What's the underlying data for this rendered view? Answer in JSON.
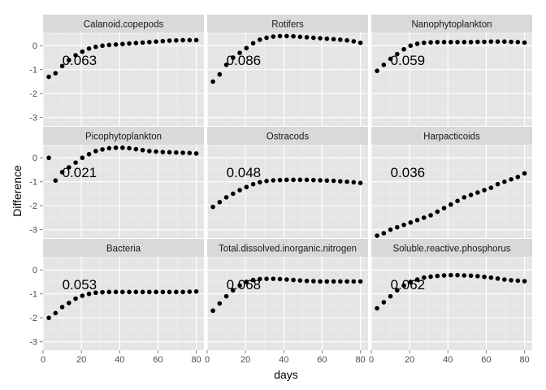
{
  "chart_data": {
    "type": "scatter",
    "xlabel": "days",
    "ylabel": "Difference",
    "xlim": [
      0,
      84
    ],
    "ylim": [
      -3.35,
      0.55
    ],
    "xticks": [
      0,
      20,
      40,
      60,
      80
    ],
    "yticks": [
      0,
      -1,
      -2,
      -3
    ],
    "grid": true,
    "x": [
      3,
      6.5,
      10,
      13.5,
      17,
      20.5,
      24,
      27.5,
      31,
      34.5,
      38,
      41.5,
      45,
      48.5,
      52,
      55.5,
      59,
      62.5,
      66,
      69.5,
      73,
      76.5,
      80
    ],
    "panels": [
      {
        "name": "Calanoid.copepods",
        "annotation": "0.063",
        "y": [
          -1.3,
          -1.15,
          -0.85,
          -0.6,
          -0.4,
          -0.25,
          -0.12,
          -0.05,
          0.0,
          0.03,
          0.05,
          0.07,
          0.09,
          0.11,
          0.13,
          0.15,
          0.17,
          0.19,
          0.21,
          0.22,
          0.23,
          0.23,
          0.23
        ]
      },
      {
        "name": "Rotifers",
        "annotation": "0.086",
        "y": [
          -1.5,
          -1.2,
          -0.8,
          -0.5,
          -0.3,
          -0.1,
          0.1,
          0.25,
          0.33,
          0.38,
          0.4,
          0.4,
          0.39,
          0.37,
          0.35,
          0.33,
          0.31,
          0.29,
          0.27,
          0.25,
          0.22,
          0.18,
          0.12
        ]
      },
      {
        "name": "Nanophytoplankton",
        "annotation": "0.059",
        "y": [
          -1.05,
          -0.8,
          -0.55,
          -0.35,
          -0.15,
          0.0,
          0.08,
          0.12,
          0.14,
          0.15,
          0.15,
          0.15,
          0.15,
          0.15,
          0.15,
          0.16,
          0.16,
          0.17,
          0.17,
          0.17,
          0.16,
          0.15,
          0.13
        ]
      },
      {
        "name": "Picophytoplankton",
        "annotation": "0.021",
        "y": [
          0.0,
          -0.95,
          -0.6,
          -0.4,
          -0.2,
          0.0,
          0.15,
          0.28,
          0.35,
          0.4,
          0.42,
          0.42,
          0.4,
          0.36,
          0.32,
          0.28,
          0.26,
          0.24,
          0.23,
          0.22,
          0.21,
          0.2,
          0.18
        ]
      },
      {
        "name": "Ostracods",
        "annotation": "0.048",
        "y": [
          -2.05,
          -1.85,
          -1.65,
          -1.5,
          -1.35,
          -1.22,
          -1.1,
          -1.02,
          -0.97,
          -0.94,
          -0.93,
          -0.92,
          -0.92,
          -0.92,
          -0.92,
          -0.93,
          -0.94,
          -0.95,
          -0.96,
          -0.98,
          -1.0,
          -1.02,
          -1.05
        ]
      },
      {
        "name": "Harpacticoids",
        "annotation": "0.036",
        "y": [
          -3.25,
          -3.15,
          -3.0,
          -2.9,
          -2.8,
          -2.7,
          -2.6,
          -2.5,
          -2.4,
          -2.25,
          -2.1,
          -1.95,
          -1.8,
          -1.65,
          -1.55,
          -1.45,
          -1.35,
          -1.25,
          -1.1,
          -1.0,
          -0.9,
          -0.8,
          -0.65
        ]
      },
      {
        "name": "Bacteria",
        "annotation": "0.053",
        "y": [
          -2.0,
          -1.8,
          -1.55,
          -1.38,
          -1.2,
          -1.08,
          -1.0,
          -0.95,
          -0.93,
          -0.92,
          -0.92,
          -0.92,
          -0.92,
          -0.92,
          -0.92,
          -0.92,
          -0.92,
          -0.92,
          -0.92,
          -0.92,
          -0.92,
          -0.91,
          -0.9
        ]
      },
      {
        "name": "Total.dissolved.inorganic.nitrogen",
        "annotation": "0.068",
        "y": [
          -1.7,
          -1.4,
          -1.1,
          -0.85,
          -0.65,
          -0.5,
          -0.42,
          -0.38,
          -0.37,
          -0.37,
          -0.38,
          -0.4,
          -0.42,
          -0.44,
          -0.46,
          -0.47,
          -0.48,
          -0.48,
          -0.48,
          -0.48,
          -0.48,
          -0.48,
          -0.48
        ]
      },
      {
        "name": "Soluble.reactive.phosphorus",
        "annotation": "0.062",
        "y": [
          -1.6,
          -1.35,
          -1.1,
          -0.85,
          -0.65,
          -0.5,
          -0.4,
          -0.32,
          -0.28,
          -0.25,
          -0.23,
          -0.22,
          -0.22,
          -0.23,
          -0.24,
          -0.26,
          -0.29,
          -0.32,
          -0.36,
          -0.4,
          -0.43,
          -0.45,
          -0.47
        ]
      }
    ]
  }
}
